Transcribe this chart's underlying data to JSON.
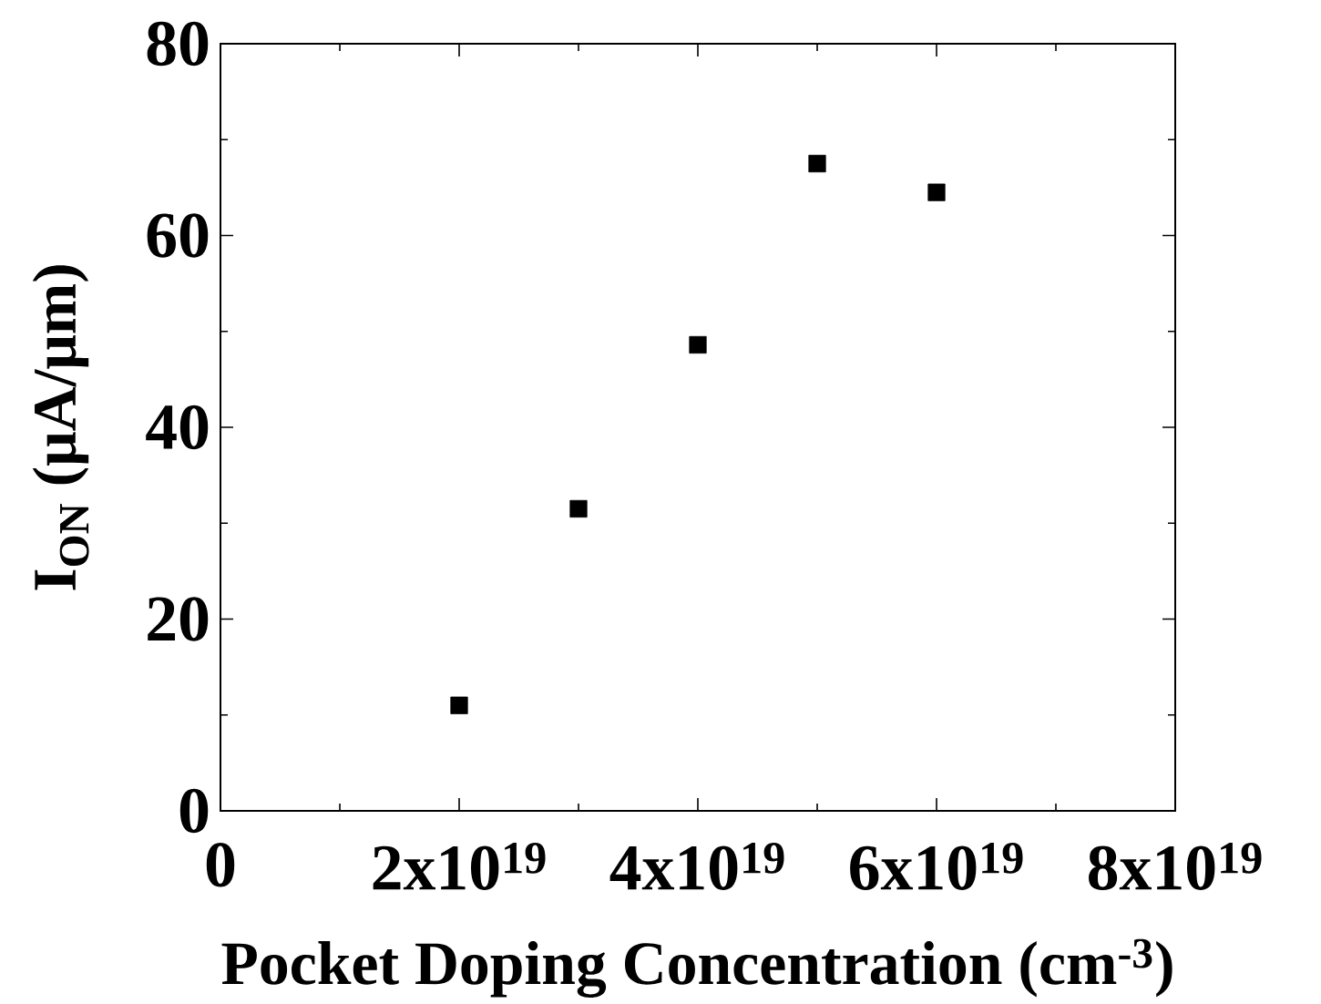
{
  "chart_data": {
    "type": "scatter",
    "xlabel": "Pocket Doping Concentration (cm$^{-3}$)",
    "ylabel": "I$_{ON}$ (μA/μm)",
    "x": [
      2e+19,
      3e+19,
      4e+19,
      5e+19,
      6e+19
    ],
    "series": [
      {
        "color": "#000000",
        "values": [
          11.0,
          31.5,
          48.6,
          67.5,
          64.5
        ]
      }
    ],
    "xlim": [
      0,
      8e+19
    ],
    "xticks": [
      0,
      {
        "value": 2e+19,
        "label": "2x10$^{19}$"
      },
      {
        "value": 4e+19,
        "label": "4x10$^{19}$"
      },
      {
        "value": 6e+19,
        "label": "6x10$^{19}$"
      },
      {
        "value": 8e+19,
        "label": "8x10$^{19}$"
      }
    ],
    "ylim": [
      0,
      80
    ],
    "yticks": [
      0,
      20,
      40,
      60,
      80
    ],
    "marker": "square"
  }
}
